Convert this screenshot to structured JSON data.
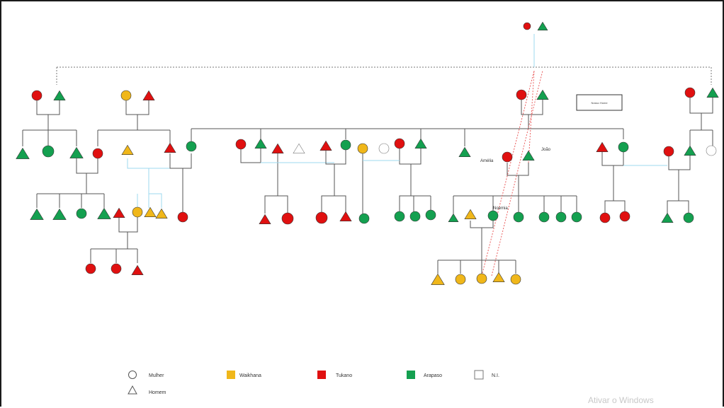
{
  "colors": {
    "tukano": "#e01010",
    "arapaso": "#14a050",
    "waikhana": "#f0b71a",
    "unknown": "#ffffff",
    "line": "#555555",
    "dotted": "#777777",
    "link_blue": "#9ed9ef",
    "link_red": "#ea6060"
  },
  "labels": {
    "amelia": "Amélia",
    "joao": "João",
    "noemia": "Noemia",
    "box": "Nosso Home"
  },
  "legend": {
    "female": "Mulher",
    "male": "Homem",
    "waikhana": "Waikhana",
    "tukano": "Tukano",
    "arapaso": "Arapaso",
    "unknown": "N.I."
  },
  "watermark": "Ativar o Windows"
}
